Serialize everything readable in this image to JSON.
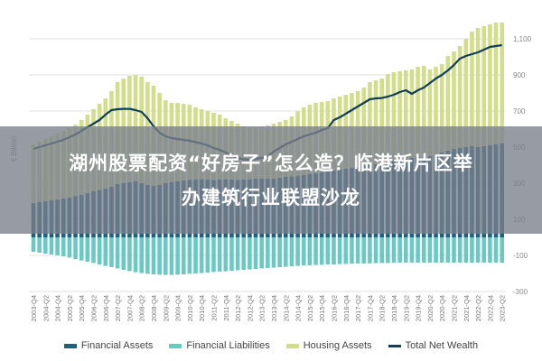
{
  "banner": {
    "line1": "湖州股票配资“好房子”怎么造？临港新片区举",
    "line2": "办建筑行业联盟沙龙"
  },
  "chart_data": {
    "type": "bar",
    "stacked": true,
    "ylabel": "€ Billion",
    "ylim": [
      -300,
      1200
    ],
    "yticks": [
      1100,
      900,
      700,
      500,
      300,
      100,
      -100,
      -300
    ],
    "ytick_labels": [
      "1,100",
      "900",
      "700",
      "500",
      "300",
      "100",
      "-100",
      "-300"
    ],
    "grid": true,
    "legend": "bottom",
    "x_labels": [
      "2003-Q4",
      "2004-Q2",
      "2004-Q4",
      "2005-Q2",
      "2005-Q4",
      "2006-Q2",
      "2006-Q4",
      "2007-Q2",
      "2007-Q4",
      "2008-Q2",
      "2008-Q4",
      "2009-Q2",
      "2009-Q4",
      "2010-Q2",
      "2010-Q4",
      "2011-Q2",
      "2011-Q4",
      "2012-Q2",
      "2012-Q4",
      "2013-Q2",
      "2013-Q4",
      "2014-Q2",
      "2014-Q4",
      "2015-Q2",
      "2015-Q4",
      "2016-Q2",
      "2016-Q4",
      "2017-Q2",
      "2017-Q4",
      "2018-Q2",
      "2018-Q4",
      "2019-Q2",
      "2019-Q4",
      "2020-Q2",
      "2020-Q4",
      "2021-Q2",
      "2021-Q4",
      "2022-Q2",
      "2022-Q4",
      "2023-Q2"
    ],
    "x_range": [
      "2003-Q4",
      "2023-Q2"
    ],
    "series": [
      {
        "name": "Financial Assets",
        "color": "#1f5f7f",
        "kind": "bar",
        "values": [
          190,
          195,
          200,
          205,
          210,
          215,
          220,
          228,
          235,
          245,
          255,
          262,
          270,
          280,
          295,
          300,
          305,
          310,
          300,
          290,
          285,
          290,
          300,
          305,
          310,
          315,
          318,
          320,
          322,
          320,
          318,
          320,
          322,
          320,
          318,
          320,
          322,
          325,
          325,
          325,
          325,
          330,
          335,
          338,
          340,
          345,
          350,
          355,
          360,
          365,
          370,
          375,
          380,
          385,
          390,
          395,
          400,
          405,
          410,
          420,
          425,
          430,
          435,
          440,
          445,
          440,
          450,
          460,
          470,
          480,
          490,
          495,
          500,
          505,
          500,
          505,
          510,
          515,
          520
        ]
      },
      {
        "name": "Financial Liabilities",
        "color": "#6cc8c3",
        "kind": "bar",
        "values": [
          -80,
          -85,
          -90,
          -95,
          -100,
          -105,
          -112,
          -120,
          -128,
          -135,
          -142,
          -150,
          -158,
          -165,
          -172,
          -180,
          -187,
          -193,
          -198,
          -202,
          -205,
          -207,
          -208,
          -208,
          -207,
          -205,
          -202,
          -200,
          -198,
          -195,
          -192,
          -190,
          -188,
          -185,
          -182,
          -180,
          -178,
          -175,
          -172,
          -170,
          -168,
          -165,
          -163,
          -160,
          -158,
          -156,
          -155,
          -153,
          -152,
          -150,
          -150,
          -148,
          -147,
          -146,
          -145,
          -145,
          -144,
          -143,
          -142,
          -142,
          -141,
          -140,
          -140,
          -140,
          -140,
          -140,
          -140,
          -140,
          -140,
          -140,
          -140,
          -140,
          -140,
          -140,
          -140,
          -140,
          -140,
          -140,
          -140
        ]
      },
      {
        "name": "Housing Assets",
        "color": "#d3de8c",
        "kind": "bar",
        "values": [
          325,
          335,
          345,
          355,
          365,
          375,
          390,
          397,
          415,
          435,
          455,
          478,
          500,
          530,
          565,
          580,
          590,
          590,
          590,
          570,
          555,
          510,
          460,
          440,
          435,
          425,
          417,
          400,
          388,
          380,
          372,
          360,
          338,
          325,
          312,
          295,
          288,
          285,
          290,
          295,
          305,
          310,
          315,
          332,
          360,
          375,
          385,
          390,
          390,
          390,
          400,
          405,
          410,
          415,
          420,
          435,
          460,
          465,
          470,
          485,
          490,
          490,
          490,
          490,
          500,
          510,
          480,
          485,
          490,
          525,
          540,
          565,
          600,
          635,
          660,
          665,
          670,
          675,
          670
        ]
      },
      {
        "name": "Total Net Wealth",
        "color": "#123f58",
        "kind": "line",
        "values": [
          490,
          500,
          510,
          520,
          530,
          540,
          555,
          570,
          590,
          610,
          630,
          650,
          680,
          705,
          710,
          712,
          712,
          705,
          695,
          660,
          615,
          580,
          560,
          550,
          545,
          540,
          535,
          528,
          520,
          510,
          495,
          485,
          470,
          455,
          440,
          432,
          430,
          435,
          440,
          450,
          475,
          495,
          515,
          530,
          545,
          560,
          570,
          580,
          595,
          605,
          650,
          665,
          685,
          705,
          725,
          745,
          765,
          770,
          772,
          780,
          790,
          805,
          815,
          795,
          815,
          830,
          855,
          880,
          900,
          925,
          955,
          990,
          1005,
          1015,
          1025,
          1040,
          1055,
          1060,
          1065
        ]
      }
    ]
  }
}
